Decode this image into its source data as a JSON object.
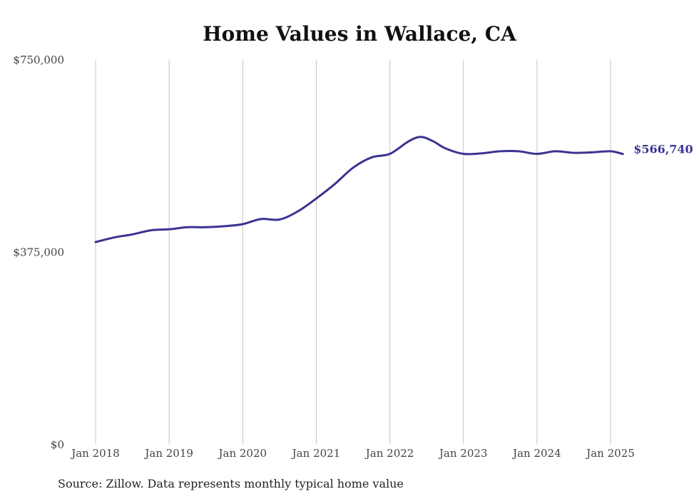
{
  "chart_data": {
    "type": "line",
    "title": "Home Values in Wallace, CA",
    "xlabel": "",
    "ylabel": "",
    "ylim": [
      0,
      750000
    ],
    "yticks": [
      {
        "value": 0,
        "label": "$0"
      },
      {
        "value": 375000,
        "label": "$375,000"
      },
      {
        "value": 750000,
        "label": "$750,000"
      }
    ],
    "xticks": [
      {
        "value": "2018-01",
        "label": "Jan 2018"
      },
      {
        "value": "2019-01",
        "label": "Jan 2019"
      },
      {
        "value": "2020-01",
        "label": "Jan 2020"
      },
      {
        "value": "2021-01",
        "label": "Jan 2021"
      },
      {
        "value": "2022-01",
        "label": "Jan 2022"
      },
      {
        "value": "2023-01",
        "label": "Jan 2023"
      },
      {
        "value": "2024-01",
        "label": "Jan 2024"
      },
      {
        "value": "2025-01",
        "label": "Jan 2025"
      }
    ],
    "grid": "vertical",
    "series": [
      {
        "color": "#3b3491",
        "end_label": "$566,740",
        "points": [
          {
            "x": "2018-01",
            "y": 395000
          },
          {
            "x": "2018-04",
            "y": 404000
          },
          {
            "x": "2018-07",
            "y": 410000
          },
          {
            "x": "2018-10",
            "y": 418000
          },
          {
            "x": "2019-01",
            "y": 420000
          },
          {
            "x": "2019-04",
            "y": 424000
          },
          {
            "x": "2019-07",
            "y": 424000
          },
          {
            "x": "2019-10",
            "y": 426000
          },
          {
            "x": "2020-01",
            "y": 430000
          },
          {
            "x": "2020-04",
            "y": 440000
          },
          {
            "x": "2020-07",
            "y": 439000
          },
          {
            "x": "2020-10",
            "y": 455000
          },
          {
            "x": "2021-01",
            "y": 480000
          },
          {
            "x": "2021-04",
            "y": 508000
          },
          {
            "x": "2021-07",
            "y": 540000
          },
          {
            "x": "2021-10",
            "y": 560000
          },
          {
            "x": "2022-01",
            "y": 567000
          },
          {
            "x": "2022-04",
            "y": 591000
          },
          {
            "x": "2022-06",
            "y": 600000
          },
          {
            "x": "2022-08",
            "y": 592000
          },
          {
            "x": "2022-10",
            "y": 578000
          },
          {
            "x": "2023-01",
            "y": 567000
          },
          {
            "x": "2023-04",
            "y": 568000
          },
          {
            "x": "2023-07",
            "y": 572000
          },
          {
            "x": "2023-10",
            "y": 572000
          },
          {
            "x": "2024-01",
            "y": 567000
          },
          {
            "x": "2024-04",
            "y": 572000
          },
          {
            "x": "2024-07",
            "y": 569000
          },
          {
            "x": "2024-10",
            "y": 570000
          },
          {
            "x": "2025-01",
            "y": 572000
          },
          {
            "x": "2025-03",
            "y": 566740
          }
        ]
      }
    ]
  },
  "source_note": "Source: Zillow. Data represents monthly typical home value"
}
